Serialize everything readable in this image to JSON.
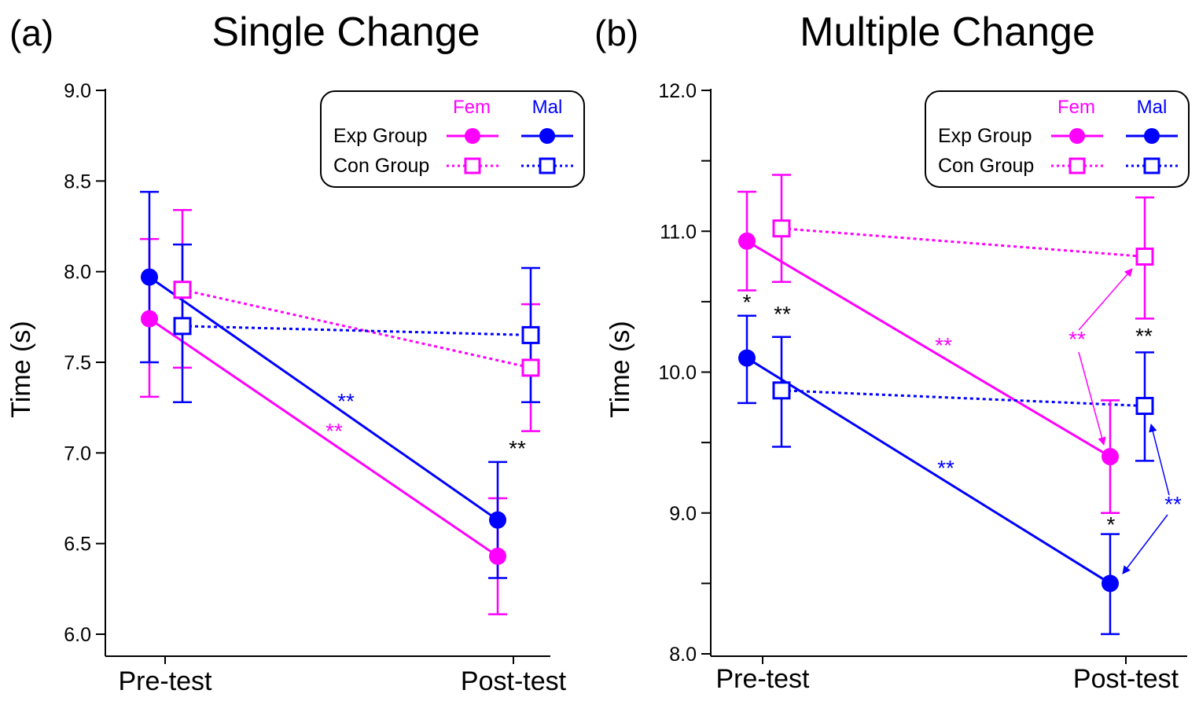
{
  "colors": {
    "female": "#ff00ff",
    "male": "#0000ff",
    "axis": "#000000",
    "annotation": "#000000"
  },
  "chart_data": [
    {
      "type": "line",
      "panel_label": "(a)",
      "title": "Single Change",
      "xlabel": "",
      "ylabel": "Time (s)",
      "ylim": [
        6.0,
        9.0
      ],
      "yticks": [
        6.0,
        6.5,
        7.0,
        7.5,
        8.0,
        8.5,
        9.0
      ],
      "ytick_labels": [
        "6.0",
        "6.5",
        "7.0",
        "7.5",
        "8.0",
        "8.5",
        "9.0"
      ],
      "categories": [
        "Pre-test",
        "Post-test"
      ],
      "legend": {
        "position": "top-right",
        "col_female": "Fem",
        "col_male": "Mal",
        "row_exp": "Exp Group",
        "row_con": "Con Group"
      },
      "series": [
        {
          "name": "Exp Group Fem",
          "sex": "female",
          "group": "exp",
          "values": [
            7.74,
            6.43
          ],
          "err_low": [
            7.31,
            6.11
          ],
          "err_high": [
            8.18,
            6.75
          ]
        },
        {
          "name": "Exp Group Mal",
          "sex": "male",
          "group": "exp",
          "values": [
            7.97,
            6.63
          ],
          "err_low": [
            7.5,
            6.31
          ],
          "err_high": [
            8.44,
            6.95
          ]
        },
        {
          "name": "Con Group Fem",
          "sex": "female",
          "group": "con",
          "values": [
            7.9,
            7.47
          ],
          "err_low": [
            7.47,
            7.12
          ],
          "err_high": [
            8.34,
            7.82
          ]
        },
        {
          "name": "Con Group Mal",
          "sex": "male",
          "group": "con",
          "values": [
            7.7,
            7.65
          ],
          "err_low": [
            7.28,
            7.28
          ],
          "err_high": [
            8.15,
            8.02
          ]
        }
      ],
      "annotations": [
        {
          "text": "**",
          "color": "male"
        },
        {
          "text": "**",
          "color": "female"
        },
        {
          "text": "**",
          "color": "annotation"
        }
      ],
      "arrows": []
    },
    {
      "type": "line",
      "panel_label": "(b)",
      "title": "Multiple Change",
      "xlabel": "",
      "ylabel": "Time (s)",
      "ylim": [
        8.0,
        12.0
      ],
      "yticks": [
        8.0,
        8.5,
        9.0,
        9.5,
        10.0,
        10.5,
        11.0,
        11.5,
        12.0
      ],
      "ytick_labels": [
        "8.0",
        "",
        "9.0",
        "",
        "10.0",
        "",
        "11.0",
        "",
        "12.0"
      ],
      "categories": [
        "Pre-test",
        "Post-test"
      ],
      "legend": {
        "position": "top-right",
        "col_female": "Fem",
        "col_male": "Mal",
        "row_exp": "Exp Group",
        "row_con": "Con Group"
      },
      "series": [
        {
          "name": "Exp Group Fem",
          "sex": "female",
          "group": "exp",
          "values": [
            10.93,
            9.4
          ],
          "err_low": [
            10.58,
            9.0
          ],
          "err_high": [
            11.28,
            9.8
          ]
        },
        {
          "name": "Exp Group Mal",
          "sex": "male",
          "group": "exp",
          "values": [
            10.1,
            8.5
          ],
          "err_low": [
            9.78,
            8.14
          ],
          "err_high": [
            10.4,
            8.85
          ]
        },
        {
          "name": "Con Group Fem",
          "sex": "female",
          "group": "con",
          "values": [
            11.02,
            10.82
          ],
          "err_low": [
            10.64,
            10.38
          ],
          "err_high": [
            11.4,
            11.24
          ]
        },
        {
          "name": "Con Group Mal",
          "sex": "male",
          "group": "con",
          "values": [
            9.87,
            9.76
          ],
          "err_low": [
            9.47,
            9.37
          ],
          "err_high": [
            10.25,
            10.14
          ]
        }
      ],
      "annotations": [
        {
          "text": "*",
          "color": "annotation"
        },
        {
          "text": "**",
          "color": "annotation"
        },
        {
          "text": "**",
          "color": "female"
        },
        {
          "text": "**",
          "color": "male"
        },
        {
          "text": "**",
          "color": "female"
        },
        {
          "text": "**",
          "color": "annotation"
        },
        {
          "text": "*",
          "color": "annotation"
        },
        {
          "text": "**",
          "color": "male"
        }
      ],
      "arrows": [
        {
          "from": "female-label",
          "to": "Con Group Fem post",
          "color": "female"
        },
        {
          "from": "female-label",
          "to": "Exp Group Fem post",
          "color": "female"
        },
        {
          "from": "male-label",
          "to": "Con Group Mal post",
          "color": "male"
        },
        {
          "from": "male-label",
          "to": "Exp Group Mal post",
          "color": "male"
        }
      ]
    }
  ]
}
